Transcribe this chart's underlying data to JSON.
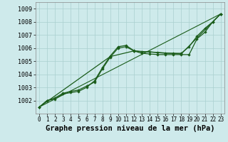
{
  "bg_color": "#ceeaeb",
  "grid_color": "#aacfcf",
  "line_color": "#1a5c1a",
  "marker_color": "#1a5c1a",
  "xlabel": "Graphe pression niveau de la mer (hPa)",
  "xlabel_fontsize": 7.5,
  "ylabel_fontsize": 6.0,
  "tick_fontsize": 5.5,
  "xlim": [
    -0.5,
    23.5
  ],
  "ylim": [
    1001.0,
    1009.5
  ],
  "yticks": [
    1002,
    1003,
    1004,
    1005,
    1006,
    1007,
    1008,
    1009
  ],
  "xticks": [
    0,
    1,
    2,
    3,
    4,
    5,
    6,
    7,
    8,
    9,
    10,
    11,
    12,
    13,
    14,
    15,
    16,
    17,
    18,
    19,
    20,
    21,
    22,
    23
  ],
  "series": [
    {
      "x": [
        0,
        1,
        2,
        3,
        4,
        5,
        6,
        7,
        8,
        9,
        10,
        11,
        12,
        13,
        14,
        15,
        16,
        17,
        18,
        19,
        20,
        21,
        22,
        23
      ],
      "y": [
        1001.5,
        1002.0,
        1002.1,
        1002.5,
        1002.6,
        1002.7,
        1003.0,
        1003.5,
        1004.5,
        1005.4,
        1006.1,
        1006.2,
        1005.8,
        1005.7,
        1005.7,
        1005.65,
        1005.6,
        1005.6,
        1005.6,
        1006.1,
        1006.9,
        1007.5,
        1008.0,
        1008.6
      ],
      "with_marker": true,
      "markersize": 2.2,
      "linewidth": 0.9
    },
    {
      "x": [
        0,
        1,
        2,
        3,
        4,
        5,
        6,
        7,
        8,
        9,
        10,
        11,
        12,
        13,
        14,
        15,
        16,
        17,
        18,
        19,
        20,
        21,
        22,
        23
      ],
      "y": [
        1001.5,
        1002.0,
        1002.2,
        1002.55,
        1002.7,
        1002.8,
        1003.1,
        1003.4,
        1004.4,
        1005.3,
        1006.0,
        1006.1,
        1005.78,
        1005.6,
        1005.55,
        1005.5,
        1005.5,
        1005.5,
        1005.5,
        1005.5,
        1006.7,
        1007.2,
        1008.0,
        1008.6
      ],
      "with_marker": true,
      "markersize": 2.2,
      "linewidth": 0.9
    },
    {
      "x": [
        0,
        23
      ],
      "y": [
        1001.5,
        1008.6
      ],
      "with_marker": false,
      "markersize": 0,
      "linewidth": 0.8
    },
    {
      "x": [
        0,
        9,
        12,
        18,
        23
      ],
      "y": [
        1001.5,
        1005.35,
        1005.78,
        1005.55,
        1008.6
      ],
      "with_marker": true,
      "markersize": 2.2,
      "linewidth": 0.9
    }
  ]
}
